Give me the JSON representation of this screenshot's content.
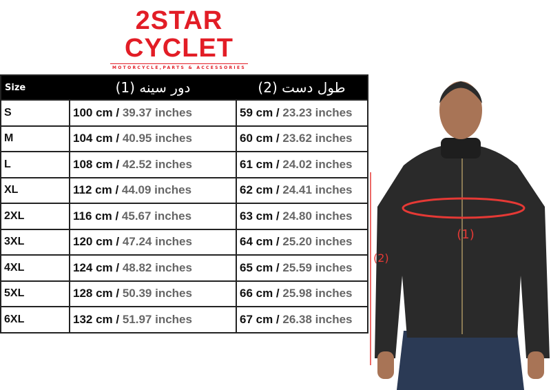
{
  "logo": {
    "line1": "2STAR",
    "line2": "CYCLET",
    "tagline": "MOTORCYCLE,PARTS & ACCESSORIES",
    "color": "#e21d26"
  },
  "table": {
    "headers": [
      "Size",
      "دور سینه (1)",
      "طول دست (2)"
    ],
    "rows": [
      {
        "size": "S",
        "chest_cm": "100 cm /",
        "chest_in": "39.37 inches",
        "arm_cm": "59 cm /",
        "arm_in": "23.23 inches"
      },
      {
        "size": "M",
        "chest_cm": "104 cm /",
        "chest_in": "40.95 inches",
        "arm_cm": "60 cm /",
        "arm_in": "23.62 inches"
      },
      {
        "size": "L",
        "chest_cm": "108 cm /",
        "chest_in": "42.52 inches",
        "arm_cm": "61 cm /",
        "arm_in": "24.02 inches"
      },
      {
        "size": "XL",
        "chest_cm": "112 cm /",
        "chest_in": "44.09 inches",
        "arm_cm": "62 cm /",
        "arm_in": "24.41 inches"
      },
      {
        "size": "2XL",
        "chest_cm": "116 cm /",
        "chest_in": "45.67 inches",
        "arm_cm": "63 cm /",
        "arm_in": "24.80 inches"
      },
      {
        "size": "3XL",
        "chest_cm": "120 cm /",
        "chest_in": "47.24 inches",
        "arm_cm": "64 cm /",
        "arm_in": "25.20 inches"
      },
      {
        "size": "4XL",
        "chest_cm": "124 cm /",
        "chest_in": "48.82 inches",
        "arm_cm": "65 cm /",
        "arm_in": "25.59 inches"
      },
      {
        "size": "5XL",
        "chest_cm": "128 cm /",
        "chest_in": "50.39 inches",
        "arm_cm": "66 cm /",
        "arm_in": "25.98 inches"
      },
      {
        "size": "6XL",
        "chest_cm": "132 cm /",
        "chest_in": "51.97 inches",
        "arm_cm": "67 cm /",
        "arm_in": "26.38 inches"
      }
    ]
  },
  "photo": {
    "chest_label": "(1)",
    "arm_label": "(2)",
    "arrow_color": "#e53935"
  }
}
